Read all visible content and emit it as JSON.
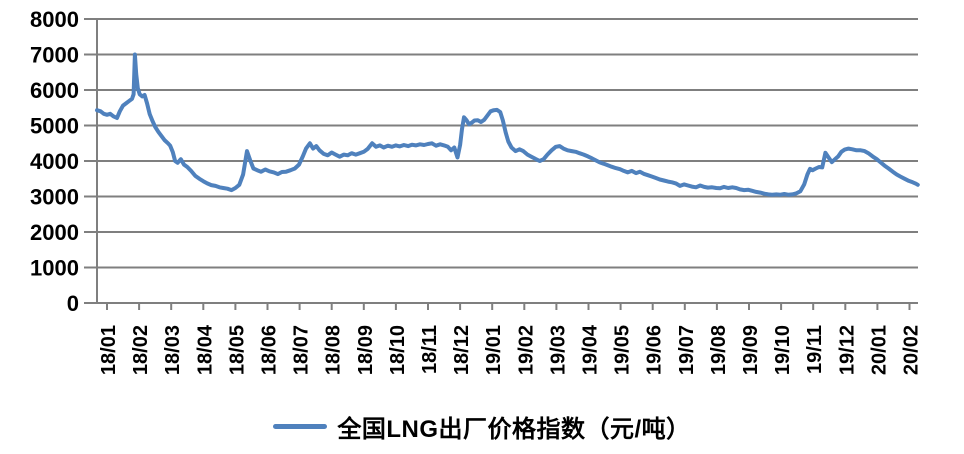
{
  "chart_data": {
    "type": "line",
    "series_name": "全国LNG出厂价格指数（元/吨）",
    "line_color": "#4F81BD",
    "grid_color": "#7F7F7F",
    "text_color": "#000000",
    "background": "#FFFFFF",
    "ylim": [
      0,
      8000
    ],
    "y_tick_step": 1000,
    "y_tick_labels": [
      "0",
      "1000",
      "2000",
      "3000",
      "4000",
      "5000",
      "6000",
      "7000",
      "8000"
    ],
    "x_tick_labels": [
      "18/01",
      "18/02",
      "18/03",
      "18/04",
      "18/05",
      "18/06",
      "18/07",
      "18/08",
      "18/09",
      "18/10",
      "18/11",
      "18/12",
      "19/01",
      "19/02",
      "19/03",
      "19/04",
      "19/05",
      "19/06",
      "19/07",
      "19/08",
      "19/09",
      "19/10",
      "19/11",
      "19/12",
      "20/01",
      "20/02"
    ],
    "x_unit_note": "point x = months after the 18/01 tick (decimal; underlying series is daily)",
    "grid": "horizontal gridlines on",
    "legend_position": "bottom-center",
    "points": [
      [
        -0.31,
        5430
      ],
      [
        -0.2,
        5400
      ],
      [
        -0.1,
        5330
      ],
      [
        0,
        5300
      ],
      [
        0.1,
        5330
      ],
      [
        0.2,
        5260
      ],
      [
        0.31,
        5210
      ],
      [
        0.4,
        5400
      ],
      [
        0.5,
        5560
      ],
      [
        0.6,
        5630
      ],
      [
        0.7,
        5700
      ],
      [
        0.78,
        5750
      ],
      [
        0.83,
        5880
      ],
      [
        0.87,
        7000
      ],
      [
        0.91,
        6450
      ],
      [
        0.96,
        6050
      ],
      [
        1.02,
        5880
      ],
      [
        1.1,
        5820
      ],
      [
        1.17,
        5860
      ],
      [
        1.25,
        5620
      ],
      [
        1.33,
        5320
      ],
      [
        1.42,
        5120
      ],
      [
        1.5,
        4960
      ],
      [
        1.6,
        4820
      ],
      [
        1.7,
        4700
      ],
      [
        1.8,
        4580
      ],
      [
        1.9,
        4500
      ],
      [
        1.97,
        4430
      ],
      [
        2.05,
        4250
      ],
      [
        2.12,
        4000
      ],
      [
        2.2,
        3950
      ],
      [
        2.3,
        4050
      ],
      [
        2.4,
        3900
      ],
      [
        2.5,
        3830
      ],
      [
        2.62,
        3720
      ],
      [
        2.75,
        3580
      ],
      [
        2.88,
        3500
      ],
      [
        3,
        3430
      ],
      [
        3.12,
        3370
      ],
      [
        3.25,
        3320
      ],
      [
        3.38,
        3300
      ],
      [
        3.5,
        3260
      ],
      [
        3.62,
        3240
      ],
      [
        3.75,
        3220
      ],
      [
        3.88,
        3180
      ],
      [
        4,
        3240
      ],
      [
        4.12,
        3330
      ],
      [
        4.24,
        3620
      ],
      [
        4.36,
        4280
      ],
      [
        4.46,
        4020
      ],
      [
        4.56,
        3790
      ],
      [
        4.68,
        3740
      ],
      [
        4.8,
        3700
      ],
      [
        4.93,
        3760
      ],
      [
        5.06,
        3710
      ],
      [
        5.2,
        3680
      ],
      [
        5.32,
        3630
      ],
      [
        5.45,
        3690
      ],
      [
        5.58,
        3700
      ],
      [
        5.72,
        3740
      ],
      [
        5.85,
        3790
      ],
      [
        5.98,
        3900
      ],
      [
        6.1,
        4130
      ],
      [
        6.2,
        4350
      ],
      [
        6.32,
        4500
      ],
      [
        6.42,
        4350
      ],
      [
        6.52,
        4420
      ],
      [
        6.62,
        4300
      ],
      [
        6.75,
        4200
      ],
      [
        6.88,
        4160
      ],
      [
        7,
        4240
      ],
      [
        7.12,
        4180
      ],
      [
        7.25,
        4120
      ],
      [
        7.38,
        4180
      ],
      [
        7.5,
        4160
      ],
      [
        7.62,
        4220
      ],
      [
        7.75,
        4180
      ],
      [
        7.88,
        4220
      ],
      [
        8,
        4260
      ],
      [
        8.12,
        4340
      ],
      [
        8.26,
        4500
      ],
      [
        8.38,
        4400
      ],
      [
        8.5,
        4440
      ],
      [
        8.62,
        4380
      ],
      [
        8.75,
        4430
      ],
      [
        8.88,
        4400
      ],
      [
        9,
        4440
      ],
      [
        9.12,
        4410
      ],
      [
        9.25,
        4450
      ],
      [
        9.38,
        4420
      ],
      [
        9.5,
        4460
      ],
      [
        9.62,
        4440
      ],
      [
        9.75,
        4470
      ],
      [
        9.88,
        4450
      ],
      [
        10,
        4480
      ],
      [
        10.12,
        4500
      ],
      [
        10.25,
        4430
      ],
      [
        10.38,
        4470
      ],
      [
        10.5,
        4440
      ],
      [
        10.62,
        4400
      ],
      [
        10.72,
        4300
      ],
      [
        10.82,
        4380
      ],
      [
        10.92,
        4100
      ],
      [
        11,
        4450
      ],
      [
        11.06,
        4900
      ],
      [
        11.12,
        5230
      ],
      [
        11.2,
        5150
      ],
      [
        11.28,
        5030
      ],
      [
        11.36,
        5080
      ],
      [
        11.45,
        5140
      ],
      [
        11.55,
        5150
      ],
      [
        11.65,
        5100
      ],
      [
        11.75,
        5160
      ],
      [
        11.85,
        5280
      ],
      [
        11.95,
        5400
      ],
      [
        12.05,
        5430
      ],
      [
        12.15,
        5440
      ],
      [
        12.25,
        5380
      ],
      [
        12.33,
        5150
      ],
      [
        12.42,
        4800
      ],
      [
        12.5,
        4550
      ],
      [
        12.6,
        4380
      ],
      [
        12.73,
        4280
      ],
      [
        12.85,
        4330
      ],
      [
        12.97,
        4280
      ],
      [
        13.1,
        4180
      ],
      [
        13.22,
        4120
      ],
      [
        13.35,
        4060
      ],
      [
        13.48,
        4000
      ],
      [
        13.6,
        4050
      ],
      [
        13.72,
        4180
      ],
      [
        13.85,
        4300
      ],
      [
        13.98,
        4400
      ],
      [
        14.1,
        4420
      ],
      [
        14.22,
        4350
      ],
      [
        14.35,
        4300
      ],
      [
        14.48,
        4280
      ],
      [
        14.6,
        4260
      ],
      [
        14.72,
        4220
      ],
      [
        14.85,
        4180
      ],
      [
        14.98,
        4130
      ],
      [
        15.1,
        4080
      ],
      [
        15.22,
        4020
      ],
      [
        15.35,
        3960
      ],
      [
        15.48,
        3920
      ],
      [
        15.6,
        3880
      ],
      [
        15.72,
        3840
      ],
      [
        15.85,
        3800
      ],
      [
        15.98,
        3770
      ],
      [
        16.1,
        3720
      ],
      [
        16.22,
        3680
      ],
      [
        16.35,
        3720
      ],
      [
        16.48,
        3660
      ],
      [
        16.6,
        3700
      ],
      [
        16.72,
        3640
      ],
      [
        16.85,
        3600
      ],
      [
        16.98,
        3560
      ],
      [
        17.1,
        3520
      ],
      [
        17.22,
        3480
      ],
      [
        17.35,
        3450
      ],
      [
        17.48,
        3420
      ],
      [
        17.6,
        3400
      ],
      [
        17.72,
        3370
      ],
      [
        17.85,
        3300
      ],
      [
        17.98,
        3340
      ],
      [
        18.1,
        3310
      ],
      [
        18.22,
        3280
      ],
      [
        18.35,
        3260
      ],
      [
        18.48,
        3310
      ],
      [
        18.6,
        3270
      ],
      [
        18.72,
        3250
      ],
      [
        18.85,
        3260
      ],
      [
        18.98,
        3240
      ],
      [
        19.1,
        3230
      ],
      [
        19.22,
        3270
      ],
      [
        19.35,
        3240
      ],
      [
        19.48,
        3260
      ],
      [
        19.6,
        3240
      ],
      [
        19.72,
        3200
      ],
      [
        19.85,
        3180
      ],
      [
        19.98,
        3190
      ],
      [
        20.1,
        3160
      ],
      [
        20.22,
        3130
      ],
      [
        20.35,
        3110
      ],
      [
        20.48,
        3080
      ],
      [
        20.6,
        3060
      ],
      [
        20.72,
        3050
      ],
      [
        20.85,
        3060
      ],
      [
        20.98,
        3050
      ],
      [
        21.1,
        3070
      ],
      [
        21.22,
        3050
      ],
      [
        21.35,
        3060
      ],
      [
        21.48,
        3090
      ],
      [
        21.6,
        3150
      ],
      [
        21.72,
        3340
      ],
      [
        21.82,
        3620
      ],
      [
        21.9,
        3780
      ],
      [
        21.98,
        3740
      ],
      [
        22.08,
        3790
      ],
      [
        22.18,
        3830
      ],
      [
        22.28,
        3820
      ],
      [
        22.38,
        4230
      ],
      [
        22.48,
        4100
      ],
      [
        22.58,
        3970
      ],
      [
        22.68,
        4050
      ],
      [
        22.78,
        4130
      ],
      [
        22.88,
        4260
      ],
      [
        22.98,
        4320
      ],
      [
        23.1,
        4350
      ],
      [
        23.22,
        4330
      ],
      [
        23.35,
        4300
      ],
      [
        23.48,
        4300
      ],
      [
        23.6,
        4280
      ],
      [
        23.72,
        4220
      ],
      [
        23.85,
        4130
      ],
      [
        23.98,
        4050
      ],
      [
        24.1,
        3960
      ],
      [
        24.22,
        3870
      ],
      [
        24.35,
        3790
      ],
      [
        24.48,
        3700
      ],
      [
        24.6,
        3620
      ],
      [
        24.72,
        3560
      ],
      [
        24.85,
        3500
      ],
      [
        24.98,
        3440
      ],
      [
        25.1,
        3400
      ],
      [
        25.2,
        3360
      ],
      [
        25.26,
        3330
      ]
    ]
  }
}
